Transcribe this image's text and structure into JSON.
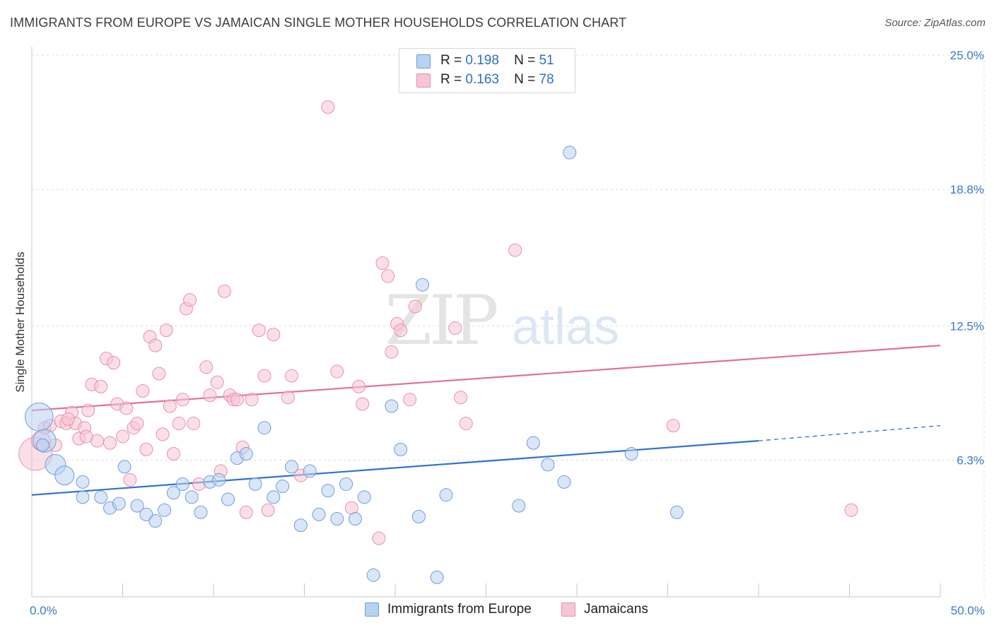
{
  "title": "IMMIGRANTS FROM EUROPE VS JAMAICAN SINGLE MOTHER HOUSEHOLDS CORRELATION CHART",
  "source": "Source: ZipAtlas.com",
  "watermark": {
    "zip": "ZIP",
    "atlas": "atlas"
  },
  "colors": {
    "blue_fill": "#b8d2f2",
    "blue_stroke": "#6f9fd8",
    "blue_line": "#2f72cf",
    "pink_fill": "#f7c5d4",
    "pink_stroke": "#e98fab",
    "pink_line": "#e3709a",
    "tick_label": "#3a78c9",
    "grid": "#dcdcdc"
  },
  "legend": {
    "r_label": "R =",
    "n_label": "N =",
    "rows": [
      {
        "series": "Immigrants from Europe",
        "r": "0.198",
        "n": "51",
        "color": "#b8d2f2"
      },
      {
        "series": "Jamaicans",
        "r": "0.163",
        "n": "78",
        "color": "#f7c5d4"
      }
    ]
  },
  "chart_data": {
    "type": "scatter",
    "title": "IMMIGRANTS FROM EUROPE VS JAMAICAN SINGLE MOTHER HOUSEHOLDS CORRELATION CHART",
    "xlabel": "",
    "ylabel": "Single Mother Households",
    "xlim": [
      0,
      50
    ],
    "ylim": [
      0,
      25
    ],
    "x_tick_labels": [
      "0.0%",
      "50.0%"
    ],
    "y_ticks": [
      6.3,
      12.5,
      18.8,
      25.0
    ],
    "y_tick_labels": [
      "6.3%",
      "12.5%",
      "18.8%",
      "25.0%"
    ],
    "grid": true,
    "legend_position": "top-center and bottom",
    "series": [
      {
        "name": "Immigrants from Europe",
        "color": "#b8d2f2",
        "trend": {
          "x": [
            0,
            40,
            50
          ],
          "y": [
            4.7,
            7.2,
            7.9
          ],
          "solid_until": 40
        },
        "points": [
          [
            0.4,
            8.3,
            2.2
          ],
          [
            0.7,
            7.2,
            1.8
          ],
          [
            1.3,
            6.1,
            1.6
          ],
          [
            1.8,
            5.6,
            1.5
          ],
          [
            2.8,
            5.3,
            1
          ],
          [
            2.8,
            4.6,
            1
          ],
          [
            3.8,
            4.6,
            1
          ],
          [
            4.3,
            4.1,
            1
          ],
          [
            4.8,
            4.3,
            1
          ],
          [
            5.1,
            6.0,
            1
          ],
          [
            5.8,
            4.2,
            1
          ],
          [
            6.3,
            3.8,
            1
          ],
          [
            6.8,
            3.5,
            1
          ],
          [
            7.3,
            4.0,
            1
          ],
          [
            7.8,
            4.8,
            1
          ],
          [
            8.3,
            5.2,
            1
          ],
          [
            8.8,
            4.6,
            1
          ],
          [
            9.3,
            3.9,
            1
          ],
          [
            9.8,
            5.3,
            1
          ],
          [
            10.3,
            5.4,
            1
          ],
          [
            10.8,
            4.5,
            1
          ],
          [
            11.3,
            6.4,
            1
          ],
          [
            11.8,
            6.6,
            1
          ],
          [
            12.3,
            5.2,
            1
          ],
          [
            13.3,
            4.6,
            1
          ],
          [
            13.8,
            5.1,
            1
          ],
          [
            12.8,
            7.8,
            1
          ],
          [
            14.3,
            6.0,
            1
          ],
          [
            14.8,
            3.3,
            1
          ],
          [
            15.3,
            5.8,
            1
          ],
          [
            15.8,
            3.8,
            1
          ],
          [
            16.3,
            4.9,
            1
          ],
          [
            16.8,
            3.6,
            1
          ],
          [
            17.3,
            5.2,
            1
          ],
          [
            17.8,
            3.6,
            1
          ],
          [
            18.3,
            4.6,
            1
          ],
          [
            18.8,
            1.0,
            1
          ],
          [
            19.8,
            8.8,
            1
          ],
          [
            20.3,
            6.8,
            1
          ],
          [
            21.3,
            3.7,
            1
          ],
          [
            21.5,
            14.4,
            1
          ],
          [
            22.3,
            0.9,
            1
          ],
          [
            22.8,
            4.7,
            1
          ],
          [
            26.8,
            4.2,
            1
          ],
          [
            27.6,
            7.1,
            1
          ],
          [
            28.4,
            6.1,
            1
          ],
          [
            29.3,
            5.3,
            1
          ],
          [
            29.6,
            20.5,
            1
          ],
          [
            33.0,
            6.6,
            1
          ],
          [
            35.5,
            3.9,
            1
          ],
          [
            0.6,
            7.0,
            1
          ]
        ]
      },
      {
        "name": "Jamaicans",
        "color": "#f7c5d4",
        "trend": {
          "x": [
            0,
            50
          ],
          "y": [
            8.6,
            11.6
          ],
          "solid_until": 50
        },
        "points": [
          [
            0.2,
            6.6,
            2.6
          ],
          [
            0.5,
            7.2,
            1.5
          ],
          [
            0.7,
            7.8,
            1
          ],
          [
            1.0,
            7.9,
            1
          ],
          [
            1.3,
            7.0,
            1
          ],
          [
            1.6,
            8.1,
            1
          ],
          [
            1.9,
            8.0,
            1
          ],
          [
            2.2,
            8.5,
            1
          ],
          [
            2.4,
            8.0,
            1
          ],
          [
            2.6,
            7.3,
            1
          ],
          [
            2.9,
            7.8,
            1
          ],
          [
            3.1,
            8.6,
            1
          ],
          [
            3.3,
            9.8,
            1
          ],
          [
            3.6,
            7.2,
            1
          ],
          [
            3.8,
            9.7,
            1
          ],
          [
            4.1,
            11.0,
            1
          ],
          [
            4.3,
            7.1,
            1
          ],
          [
            4.5,
            10.8,
            1
          ],
          [
            4.7,
            8.9,
            1
          ],
          [
            5.0,
            7.4,
            1
          ],
          [
            5.2,
            8.7,
            1
          ],
          [
            5.4,
            5.4,
            1
          ],
          [
            5.6,
            7.8,
            1
          ],
          [
            5.8,
            8.0,
            1
          ],
          [
            6.1,
            9.5,
            1
          ],
          [
            6.3,
            6.8,
            1
          ],
          [
            6.5,
            12.0,
            1
          ],
          [
            6.8,
            11.6,
            1
          ],
          [
            7.0,
            10.3,
            1
          ],
          [
            7.2,
            7.5,
            1
          ],
          [
            7.4,
            12.3,
            1
          ],
          [
            7.6,
            8.8,
            1
          ],
          [
            7.8,
            6.6,
            1
          ],
          [
            8.1,
            8.0,
            1
          ],
          [
            8.3,
            9.1,
            1
          ],
          [
            8.5,
            13.3,
            1
          ],
          [
            8.7,
            13.7,
            1
          ],
          [
            8.9,
            8.0,
            1
          ],
          [
            9.2,
            5.2,
            1
          ],
          [
            9.6,
            10.6,
            1
          ],
          [
            9.8,
            9.3,
            1
          ],
          [
            10.2,
            9.9,
            1
          ],
          [
            10.4,
            5.8,
            1
          ],
          [
            10.6,
            14.1,
            1
          ],
          [
            10.9,
            9.3,
            1
          ],
          [
            11.1,
            9.1,
            1
          ],
          [
            11.3,
            9.1,
            1
          ],
          [
            11.6,
            6.9,
            1
          ],
          [
            11.8,
            3.9,
            1
          ],
          [
            12.1,
            9.1,
            1
          ],
          [
            12.5,
            12.3,
            1
          ],
          [
            12.8,
            10.2,
            1
          ],
          [
            13.0,
            4.0,
            1
          ],
          [
            13.3,
            12.1,
            1
          ],
          [
            14.1,
            9.2,
            1
          ],
          [
            14.3,
            10.2,
            1
          ],
          [
            14.8,
            5.6,
            1
          ],
          [
            16.3,
            22.6,
            1
          ],
          [
            16.8,
            10.4,
            1
          ],
          [
            17.6,
            4.1,
            1
          ],
          [
            18.0,
            9.7,
            1
          ],
          [
            18.2,
            8.9,
            1
          ],
          [
            19.1,
            2.7,
            1
          ],
          [
            19.3,
            15.4,
            1
          ],
          [
            19.6,
            14.8,
            1
          ],
          [
            19.8,
            11.3,
            1
          ],
          [
            20.1,
            12.6,
            1
          ],
          [
            20.3,
            12.3,
            1
          ],
          [
            20.8,
            9.1,
            1
          ],
          [
            21.1,
            13.4,
            1
          ],
          [
            23.3,
            12.4,
            1
          ],
          [
            23.6,
            9.2,
            1
          ],
          [
            23.9,
            8.0,
            1
          ],
          [
            26.6,
            16.0,
            1
          ],
          [
            35.3,
            7.9,
            1
          ],
          [
            45.1,
            4.0,
            1
          ],
          [
            2.0,
            8.2,
            1
          ],
          [
            3.0,
            7.4,
            1
          ]
        ]
      }
    ]
  }
}
